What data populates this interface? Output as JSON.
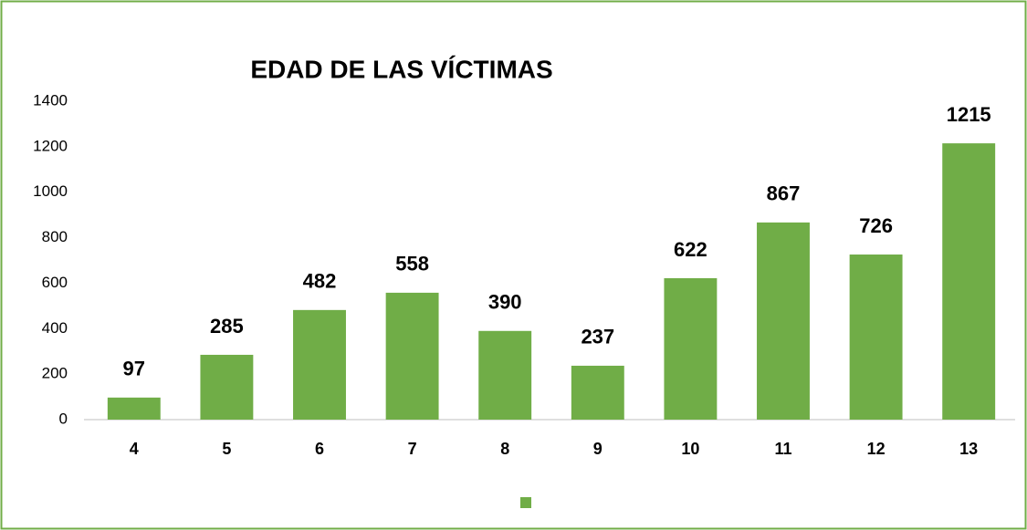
{
  "chart_data": {
    "type": "bar",
    "title": "EDAD DE LAS VÍCTIMAS",
    "categories": [
      "4",
      "5",
      "6",
      "7",
      "8",
      "9",
      "10",
      "11",
      "12",
      "13"
    ],
    "values": [
      97,
      285,
      482,
      558,
      390,
      237,
      622,
      867,
      726,
      1215
    ],
    "color": "#70ad47",
    "ylim": [
      0,
      1400
    ],
    "yticks": [
      0,
      200,
      400,
      600,
      800,
      1000,
      1200,
      1400
    ],
    "grid": false,
    "legend": "bottom"
  }
}
